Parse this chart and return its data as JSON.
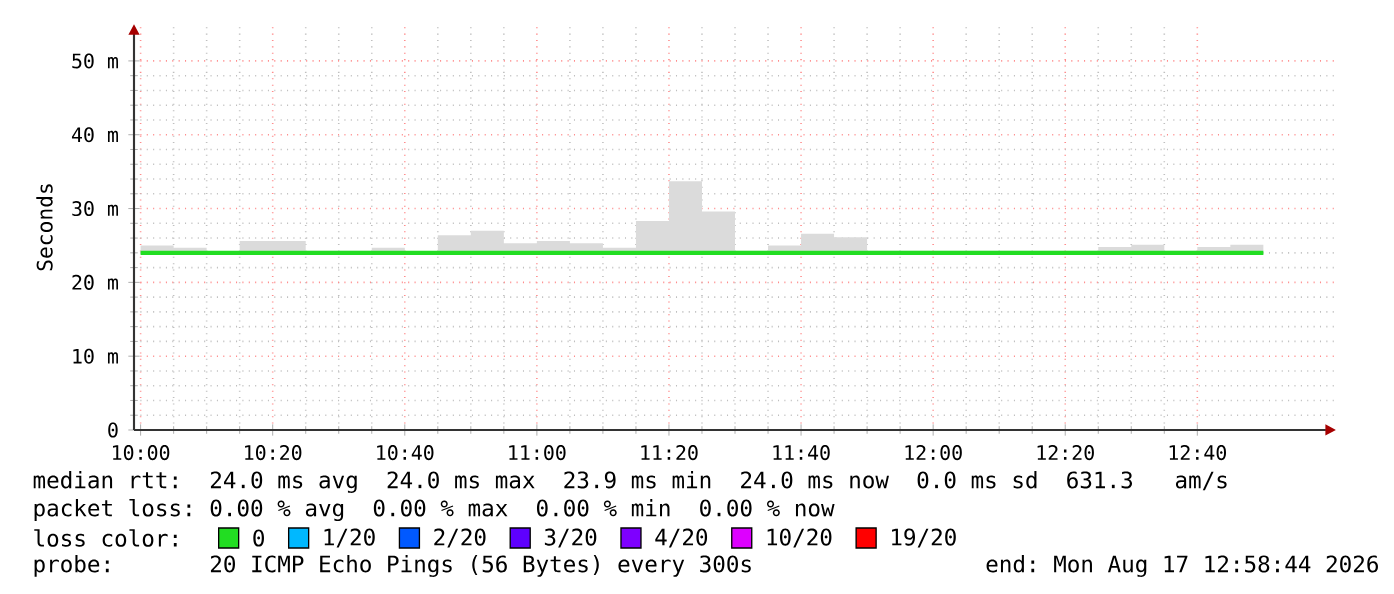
{
  "chart_data": {
    "type": "step",
    "ylabel": "Seconds",
    "x": [
      "2026-08-17T10:00",
      "2026-08-17T10:05",
      "2026-08-17T10:10",
      "2026-08-17T10:15",
      "2026-08-17T10:20",
      "2026-08-17T10:25",
      "2026-08-17T10:30",
      "2026-08-17T10:35",
      "2026-08-17T10:40",
      "2026-08-17T10:45",
      "2026-08-17T10:50",
      "2026-08-17T10:55",
      "2026-08-17T11:00",
      "2026-08-17T11:05",
      "2026-08-17T11:10",
      "2026-08-17T11:15",
      "2026-08-17T11:20",
      "2026-08-17T11:25",
      "2026-08-17T11:30",
      "2026-08-17T11:35",
      "2026-08-17T11:40",
      "2026-08-17T11:45",
      "2026-08-17T11:50",
      "2026-08-17T11:55",
      "2026-08-17T12:00",
      "2026-08-17T12:05",
      "2026-08-17T12:10",
      "2026-08-17T12:15",
      "2026-08-17T12:20",
      "2026-08-17T12:25",
      "2026-08-17T12:30",
      "2026-08-17T12:35",
      "2026-08-17T12:40",
      "2026-08-17T12:45",
      "2026-08-17T12:50"
    ],
    "series": [
      {
        "name": "0",
        "color": "#22dd22",
        "values": [
          24,
          24,
          24,
          24,
          24,
          24,
          24,
          24,
          24,
          24,
          24,
          24,
          24,
          24,
          24,
          24,
          24,
          24,
          24,
          24,
          24,
          24,
          24,
          24,
          24,
          24,
          24,
          24,
          24,
          24,
          24,
          24,
          24,
          24,
          24
        ],
        "lower": [
          23.8,
          23.8,
          23.8,
          23.8,
          23.8,
          23.8,
          23.8,
          23.8,
          23.8,
          23.8,
          23.8,
          23.8,
          23.8,
          23.8,
          23.8,
          23.8,
          23.8,
          23.8,
          23.8,
          23.8,
          23.8,
          23.8,
          23.8,
          23.8,
          23.8,
          23.8,
          23.8,
          23.8,
          23.8,
          23.8,
          23.8,
          23.8,
          23.8,
          23.8,
          23.8
        ],
        "upper": [
          25,
          24.7,
          24.1,
          25.6,
          25.6,
          24.3,
          24.3,
          24.7,
          24.2,
          26.4,
          27,
          25.3,
          25.6,
          25.3,
          24.7,
          28.3,
          33.7,
          29.6,
          24.3,
          25,
          26.6,
          26.1,
          24.3,
          24.3,
          24.3,
          24.3,
          24.3,
          24.3,
          24.3,
          24.8,
          25.1,
          24.3,
          24.8,
          25.1,
          25.1
        ]
      },
      {
        "name": "1/20",
        "color": "#00b8ff",
        "values": [
          null,
          null,
          null,
          null,
          null,
          null,
          null,
          null,
          null,
          null,
          null,
          null,
          null,
          null,
          null,
          null,
          null,
          null,
          null,
          null,
          null,
          null,
          null,
          null,
          null,
          null,
          null,
          null,
          null,
          null,
          null,
          null,
          null,
          null,
          null
        ]
      },
      {
        "name": "2/20",
        "color": "#0059ff",
        "values": [
          null,
          null,
          null,
          null,
          null,
          null,
          null,
          null,
          null,
          null,
          null,
          null,
          null,
          null,
          null,
          null,
          null,
          null,
          null,
          null,
          null,
          null,
          null,
          null,
          null,
          null,
          null,
          null,
          null,
          null,
          null,
          null,
          null,
          null,
          null
        ]
      },
      {
        "name": "3/20",
        "color": "#5e00ff",
        "values": [
          null,
          null,
          null,
          null,
          null,
          null,
          null,
          null,
          null,
          null,
          null,
          null,
          null,
          null,
          null,
          null,
          null,
          null,
          null,
          null,
          null,
          null,
          null,
          null,
          null,
          null,
          null,
          null,
          null,
          null,
          null,
          null,
          null,
          null,
          null
        ]
      },
      {
        "name": "4/20",
        "color": "#7e00ff",
        "values": [
          null,
          null,
          null,
          null,
          null,
          null,
          null,
          null,
          null,
          null,
          null,
          null,
          null,
          null,
          null,
          null,
          null,
          null,
          null,
          null,
          null,
          null,
          null,
          null,
          null,
          null,
          null,
          null,
          null,
          null,
          null,
          null,
          null,
          null,
          null
        ]
      },
      {
        "name": "10/20",
        "color": "#dd00ff",
        "values": [
          null,
          null,
          null,
          null,
          null,
          null,
          null,
          null,
          null,
          null,
          null,
          null,
          null,
          null,
          null,
          null,
          null,
          null,
          null,
          null,
          null,
          null,
          null,
          null,
          null,
          null,
          null,
          null,
          null,
          null,
          null,
          null,
          null,
          null,
          null
        ]
      },
      {
        "name": "19/20",
        "color": "#ff0000",
        "values": [
          null,
          null,
          null,
          null,
          null,
          null,
          null,
          null,
          null,
          null,
          null,
          null,
          null,
          null,
          null,
          null,
          null,
          null,
          null,
          null,
          null,
          null,
          null,
          null,
          null,
          null,
          null,
          null,
          null,
          null,
          null,
          null,
          null,
          null,
          null
        ]
      }
    ],
    "legend_title": "loss color:",
    "legend": "bottom",
    "xlim": [
      "2026-08-17T09:59",
      "2026-08-17T13:01"
    ],
    "xticks": [
      {
        "value": "2026-08-17T10:00",
        "label": "10:00"
      },
      {
        "value": "2026-08-17T10:20",
        "label": "10:20"
      },
      {
        "value": "2026-08-17T10:40",
        "label": "10:40"
      },
      {
        "value": "2026-08-17T11:00",
        "label": "11:00"
      },
      {
        "value": "2026-08-17T11:20",
        "label": "11:20"
      },
      {
        "value": "2026-08-17T11:40",
        "label": "11:40"
      },
      {
        "value": "2026-08-17T12:00",
        "label": "12:00"
      },
      {
        "value": "2026-08-17T12:20",
        "label": "12:20"
      },
      {
        "value": "2026-08-17T12:40",
        "label": "12:40"
      }
    ],
    "ylim": [
      0,
      55
    ],
    "yticks": [
      0,
      {
        "value": 10,
        "label": "10 m"
      },
      {
        "value": 20,
        "label": "20 m"
      },
      {
        "value": 30,
        "label": "30 m"
      },
      {
        "value": 40,
        "label": "40 m"
      },
      {
        "value": 50,
        "label": "50 m"
      }
    ],
    "grid": true,
    "annotations": [
      "median rtt:  24.0 ms avg  24.0 ms max  23.9 ms min  24.0 ms now  0.0 ms sd  631.3   am/s",
      "packet loss: 0.00 % avg  0.00 % max  0.00 % min  0.00 % now",
      "probe:       20 ICMP Echo Pings (56 Bytes) every 300s",
      "end: Mon Aug 17 12:58:44 2026"
    ]
  }
}
